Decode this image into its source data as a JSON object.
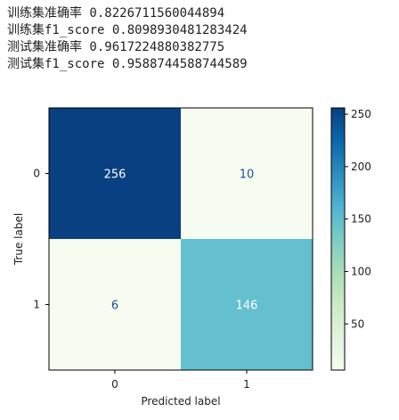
{
  "output_lines": [
    "训练集准确率 0.8226711560044894",
    "训练集f1_score 0.8098930481283424",
    "测试集准确率 0.9617224880382775",
    "测试集f1_score 0.9588744588744589"
  ],
  "chart_data": {
    "type": "heatmap",
    "title": "",
    "xlabel": "Predicted label",
    "ylabel": "True label",
    "x_categories": [
      "0",
      "1"
    ],
    "y_categories": [
      "0",
      "1"
    ],
    "values": [
      [
        256,
        10
      ],
      [
        6,
        146
      ]
    ],
    "colormap": "GnBu",
    "colors": {
      "256": "#084081",
      "146": "#64bfce",
      "10": "#f7fcf0",
      "6": "#f7fcf0",
      "dark_text": "#ffffff",
      "light_text": "#1f4e9c"
    },
    "colorbar": {
      "range": [
        6,
        256
      ],
      "ticks": [
        50,
        100,
        150,
        200,
        250
      ],
      "gradient": [
        "#f7fcf0",
        "#e0f3db",
        "#ccebc5",
        "#a8ddb5",
        "#7bccc4",
        "#4eb3d3",
        "#2b8cbe",
        "#0868ac",
        "#084081"
      ]
    }
  }
}
